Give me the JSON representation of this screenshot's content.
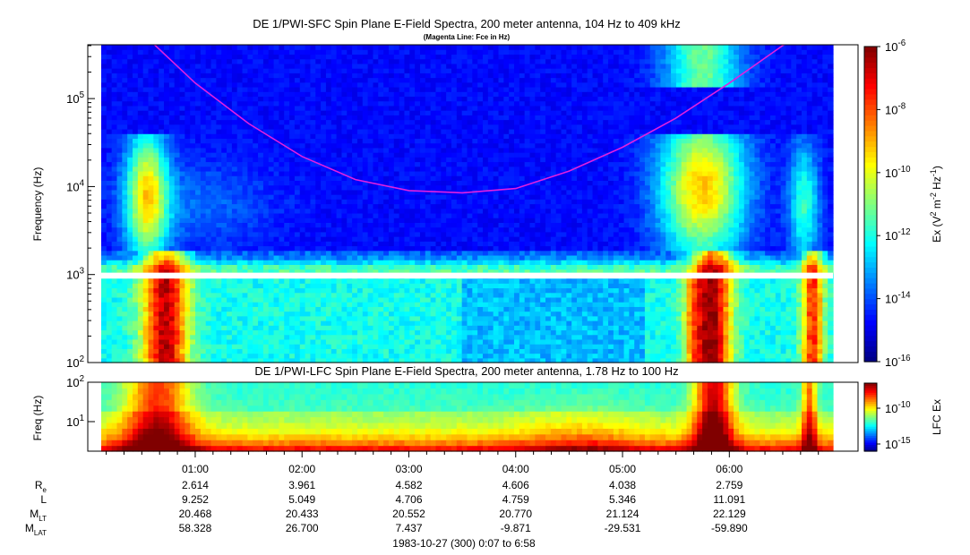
{
  "chart_data": [
    {
      "type": "heatmap",
      "title": "DE 1/PWI-SFC  Spin Plane E-Field Spectra, 200 meter antenna, 104 Hz to 409 kHz",
      "subtitle": "(Magenta Line: Fce in Hz)",
      "ylabel": "Frequency (Hz)",
      "yscale": "log",
      "ylim": [
        100,
        409000
      ],
      "yticks": [
        {
          "base": "10",
          "exp": "2"
        },
        {
          "base": "10",
          "exp": "3"
        },
        {
          "base": "10",
          "exp": "4"
        },
        {
          "base": "10",
          "exp": "5"
        }
      ],
      "colorbar": {
        "label_parts": [
          "Ex (V",
          "2",
          " m",
          "-2",
          " Hz",
          "-1",
          ")"
        ],
        "scale": "log",
        "range": [
          1e-16,
          1e-06
        ],
        "ticks": [
          {
            "base": "10",
            "exp": "-6"
          },
          {
            "base": "10",
            "exp": "-8"
          },
          {
            "base": "10",
            "exp": "-10"
          },
          {
            "base": "10",
            "exp": "-12"
          },
          {
            "base": "10",
            "exp": "-14"
          },
          {
            "base": "10",
            "exp": "-16"
          }
        ]
      },
      "gap_frequency_hz": [
        900,
        1050
      ],
      "fce_line": {
        "color": "#e020e0",
        "label": "Fce",
        "time_h": [
          0.12,
          0.5,
          1.0,
          1.5,
          2.0,
          2.5,
          3.0,
          3.5,
          4.0,
          4.5,
          5.0,
          5.5,
          6.0,
          6.5,
          6.97
        ],
        "freq_hz": [
          900000,
          560000,
          150000,
          52000,
          22000,
          12000,
          9000,
          8500,
          9500,
          15000,
          28000,
          60000,
          150000,
          400000,
          900000
        ]
      }
    },
    {
      "type": "heatmap",
      "title": "DE 1/PWI-LFC  Spin Plane E-Field Spectra, 200 meter antenna, 1.78 Hz to 100 Hz",
      "ylabel": "Freq (Hz)",
      "yscale": "log",
      "ylim": [
        1.78,
        100
      ],
      "yticks": [
        {
          "base": "10",
          "exp": "1"
        },
        {
          "base": "10",
          "exp": "2"
        }
      ],
      "colorbar": {
        "label": "LFC Ex",
        "scale": "log",
        "ticks": [
          {
            "base": "10",
            "exp": "-10"
          },
          {
            "base": "10",
            "exp": "-15"
          }
        ]
      }
    }
  ],
  "xaxis": {
    "ticks": [
      "01:00",
      "02:00",
      "03:00",
      "04:00",
      "05:00",
      "06:00"
    ],
    "range_h": [
      0.12,
      6.97
    ]
  },
  "ephemeris": [
    {
      "label": "R",
      "sub": "e",
      "values": [
        "2.614",
        "3.961",
        "4.582",
        "4.606",
        "4.038",
        "2.759"
      ]
    },
    {
      "label": "L",
      "sub": "",
      "values": [
        "9.252",
        "5.049",
        "4.706",
        "4.759",
        "5.346",
        "11.091"
      ]
    },
    {
      "label": "M",
      "sub": "LT",
      "values": [
        "20.468",
        "20.433",
        "20.552",
        "20.770",
        "21.124",
        "22.129"
      ]
    },
    {
      "label": "M",
      "sub": "LAT",
      "values": [
        "58.328",
        "26.700",
        "7.437",
        "-9.871",
        "-29.531",
        "-59.890"
      ]
    }
  ],
  "footer": "1983-10-27 (300) 0:07 to 6:58"
}
